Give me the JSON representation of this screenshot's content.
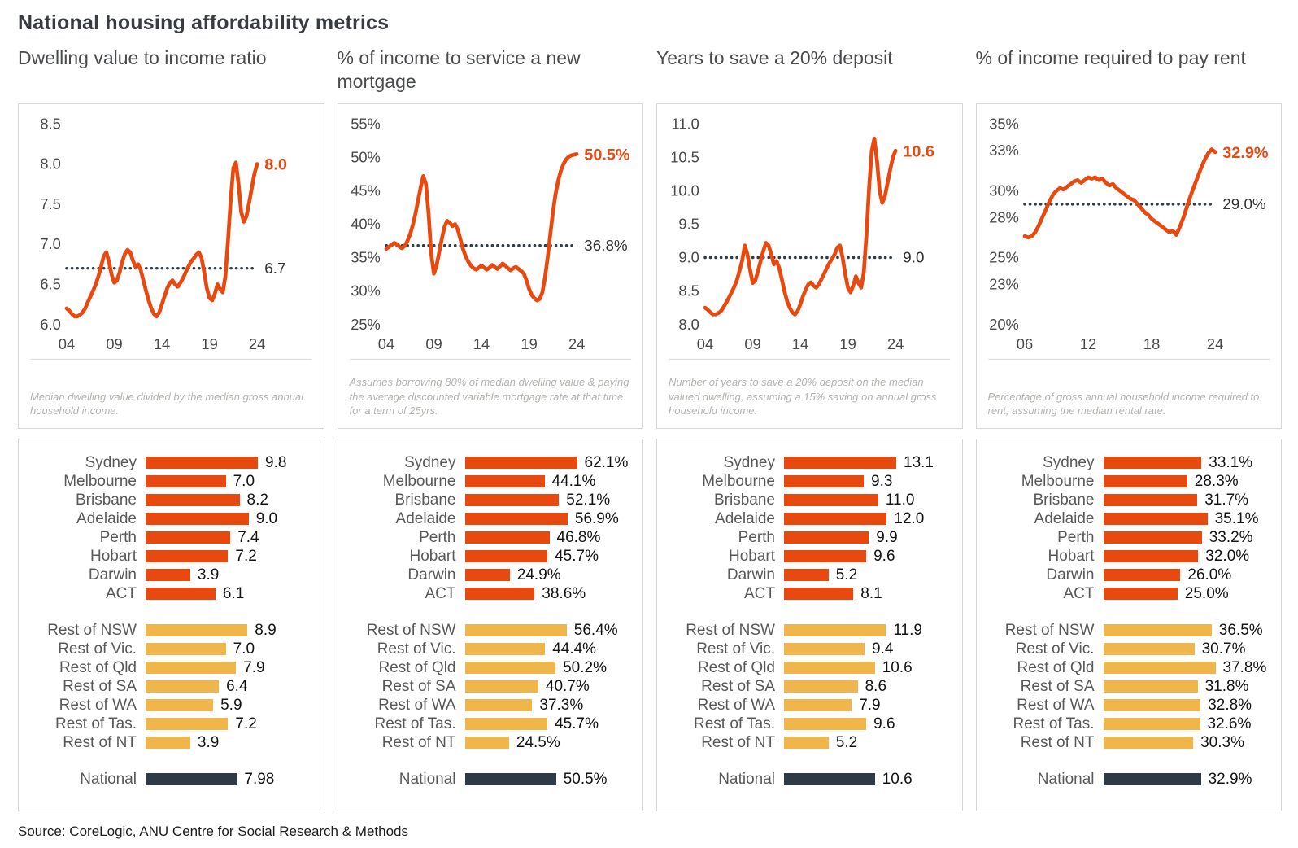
{
  "title": "National housing affordability metrics",
  "source": "Source:  CoreLogic, ANU Centre for Social Research & Methods",
  "colors": {
    "line": "#e8490f",
    "average_dotted": "#2e3b47",
    "capital_bar": "#e8490f",
    "regional_bar": "#f0b64c",
    "national_bar": "#2e3b47"
  },
  "chart_data": [
    {
      "heading": "Dwelling value to income ratio",
      "line": {
        "type": "line",
        "title": "Dwelling value to income ratio",
        "x_start": 2004,
        "x_end": 2024,
        "xticks": [
          2004,
          2009,
          2014,
          2019,
          2024
        ],
        "xtick_labels": [
          "04",
          "09",
          "14",
          "19",
          "24"
        ],
        "ylim": [
          6.0,
          8.5
        ],
        "yticks": [
          6.0,
          6.5,
          7.0,
          7.5,
          8.0,
          8.5
        ],
        "ytick_labels": [
          "6.0",
          "6.5",
          "7.0",
          "7.5",
          "8.0",
          "8.5"
        ],
        "values": [
          6.2,
          6.17,
          6.13,
          6.1,
          6.1,
          6.12,
          6.15,
          6.2,
          6.28,
          6.35,
          6.42,
          6.5,
          6.6,
          6.72,
          6.85,
          6.9,
          6.78,
          6.62,
          6.52,
          6.55,
          6.65,
          6.78,
          6.88,
          6.93,
          6.9,
          6.8,
          6.72,
          6.75,
          6.68,
          6.55,
          6.42,
          6.3,
          6.2,
          6.13,
          6.1,
          6.15,
          6.25,
          6.35,
          6.45,
          6.52,
          6.55,
          6.5,
          6.47,
          6.52,
          6.58,
          6.65,
          6.72,
          6.78,
          6.82,
          6.87,
          6.9,
          6.83,
          6.65,
          6.45,
          6.33,
          6.3,
          6.38,
          6.5,
          6.44,
          6.4,
          6.6,
          7.05,
          7.55,
          7.95,
          8.02,
          7.75,
          7.4,
          7.28,
          7.35,
          7.52,
          7.7,
          7.88,
          8.0
        ],
        "end_label": "8.0",
        "average": 6.7,
        "average_label": "6.7",
        "footnote": "Median dwelling value divided by the median gross annual household income."
      },
      "bars": {
        "type": "bar",
        "scale_max": 9.8,
        "capitals": [
          {
            "label": "Sydney",
            "value": 9.8,
            "text": "9.8"
          },
          {
            "label": "Melbourne",
            "value": 7.0,
            "text": "7.0"
          },
          {
            "label": "Brisbane",
            "value": 8.2,
            "text": "8.2"
          },
          {
            "label": "Adelaide",
            "value": 9.0,
            "text": "9.0"
          },
          {
            "label": "Perth",
            "value": 7.4,
            "text": "7.4"
          },
          {
            "label": "Hobart",
            "value": 7.2,
            "text": "7.2"
          },
          {
            "label": "Darwin",
            "value": 3.9,
            "text": "3.9"
          },
          {
            "label": "ACT",
            "value": 6.1,
            "text": "6.1"
          }
        ],
        "regional": [
          {
            "label": "Rest of NSW",
            "value": 8.9,
            "text": "8.9"
          },
          {
            "label": "Rest of Vic.",
            "value": 7.0,
            "text": "7.0"
          },
          {
            "label": "Rest of Qld",
            "value": 7.9,
            "text": "7.9"
          },
          {
            "label": "Rest of SA",
            "value": 6.4,
            "text": "6.4"
          },
          {
            "label": "Rest of WA",
            "value": 5.9,
            "text": "5.9"
          },
          {
            "label": "Rest of Tas.",
            "value": 7.2,
            "text": "7.2"
          },
          {
            "label": "Rest of NT",
            "value": 3.9,
            "text": "3.9"
          }
        ],
        "national": {
          "label": "National",
          "value": 7.98,
          "text": "7.98"
        }
      }
    },
    {
      "heading": "% of income to service a new mortgage",
      "line": {
        "type": "line",
        "title": "% of income to service a new mortgage",
        "x_start": 2004,
        "x_end": 2024,
        "xticks": [
          2004,
          2009,
          2014,
          2019,
          2024
        ],
        "xtick_labels": [
          "04",
          "09",
          "14",
          "19",
          "24"
        ],
        "ylim": [
          25,
          55
        ],
        "yticks": [
          25,
          30,
          35,
          40,
          45,
          50,
          55
        ],
        "ytick_labels": [
          "25%",
          "30%",
          "35%",
          "40%",
          "45%",
          "50%",
          "55%"
        ],
        "values": [
          36.3,
          36.6,
          36.9,
          37.2,
          37.0,
          36.6,
          36.4,
          36.8,
          37.5,
          38.5,
          39.8,
          41.5,
          43.5,
          45.5,
          47.2,
          46.0,
          41.5,
          35.5,
          32.6,
          33.8,
          35.8,
          37.8,
          39.6,
          40.5,
          40.2,
          39.7,
          40.0,
          39.2,
          37.8,
          36.3,
          35.2,
          34.4,
          33.8,
          33.4,
          33.2,
          33.5,
          33.8,
          33.5,
          33.2,
          33.5,
          33.9,
          33.6,
          33.3,
          33.7,
          34.1,
          33.8,
          33.4,
          33.1,
          33.4,
          33.6,
          33.3,
          33.0,
          32.6,
          31.6,
          30.3,
          29.4,
          28.9,
          28.6,
          28.8,
          29.8,
          32.0,
          35.0,
          38.5,
          41.8,
          44.5,
          46.5,
          48.0,
          49.0,
          49.7,
          50.1,
          50.3,
          50.4,
          50.5
        ],
        "end_label": "50.5%",
        "average": 36.8,
        "average_label": "36.8%",
        "footnote": "Assumes borrowing 80% of median dwelling value & paying the average discounted variable mortgage rate at that time for a term of 25yrs."
      },
      "bars": {
        "type": "bar",
        "scale_max": 62.1,
        "capitals": [
          {
            "label": "Sydney",
            "value": 62.1,
            "text": "62.1%"
          },
          {
            "label": "Melbourne",
            "value": 44.1,
            "text": "44.1%"
          },
          {
            "label": "Brisbane",
            "value": 52.1,
            "text": "52.1%"
          },
          {
            "label": "Adelaide",
            "value": 56.9,
            "text": "56.9%"
          },
          {
            "label": "Perth",
            "value": 46.8,
            "text": "46.8%"
          },
          {
            "label": "Hobart",
            "value": 45.7,
            "text": "45.7%"
          },
          {
            "label": "Darwin",
            "value": 24.9,
            "text": "24.9%"
          },
          {
            "label": "ACT",
            "value": 38.6,
            "text": "38.6%"
          }
        ],
        "regional": [
          {
            "label": "Rest of NSW",
            "value": 56.4,
            "text": "56.4%"
          },
          {
            "label": "Rest of Vic.",
            "value": 44.4,
            "text": "44.4%"
          },
          {
            "label": "Rest of Qld",
            "value": 50.2,
            "text": "50.2%"
          },
          {
            "label": "Rest of SA",
            "value": 40.7,
            "text": "40.7%"
          },
          {
            "label": "Rest of WA",
            "value": 37.3,
            "text": "37.3%"
          },
          {
            "label": "Rest of Tas.",
            "value": 45.7,
            "text": "45.7%"
          },
          {
            "label": "Rest of NT",
            "value": 24.5,
            "text": "24.5%"
          }
        ],
        "national": {
          "label": "National",
          "value": 50.5,
          "text": "50.5%"
        }
      }
    },
    {
      "heading": "Years to save a 20% deposit",
      "line": {
        "type": "line",
        "title": "Years to save a 20% deposit",
        "x_start": 2004,
        "x_end": 2024,
        "xticks": [
          2004,
          2009,
          2014,
          2019,
          2024
        ],
        "xtick_labels": [
          "04",
          "09",
          "14",
          "19",
          "24"
        ],
        "ylim": [
          8.0,
          11.0
        ],
        "yticks": [
          8.0,
          8.5,
          9.0,
          9.5,
          10.0,
          10.5,
          11.0
        ],
        "ytick_labels": [
          "8.0",
          "8.5",
          "9.0",
          "9.5",
          "10.0",
          "10.5",
          "11.0"
        ],
        "values": [
          8.25,
          8.22,
          8.18,
          8.15,
          8.15,
          8.17,
          8.2,
          8.26,
          8.33,
          8.4,
          8.48,
          8.56,
          8.66,
          8.8,
          8.95,
          9.18,
          9.05,
          8.82,
          8.62,
          8.66,
          8.8,
          8.95,
          9.1,
          9.22,
          9.18,
          9.05,
          8.9,
          8.95,
          8.85,
          8.68,
          8.5,
          8.35,
          8.25,
          8.18,
          8.15,
          8.2,
          8.3,
          8.42,
          8.52,
          8.6,
          8.63,
          8.58,
          8.55,
          8.6,
          8.68,
          8.76,
          8.84,
          8.92,
          8.98,
          9.05,
          9.15,
          9.18,
          9.0,
          8.75,
          8.55,
          8.48,
          8.58,
          8.72,
          8.62,
          8.55,
          8.78,
          9.35,
          10.05,
          10.6,
          10.78,
          10.45,
          10.0,
          9.82,
          9.92,
          10.12,
          10.32,
          10.5,
          10.6
        ],
        "end_label": "10.6",
        "average": 9.0,
        "average_label": "9.0",
        "footnote": "Number of years to save a 20% deposit on the median valued dwelling, assuming a 15% saving on annual gross household income."
      },
      "bars": {
        "type": "bar",
        "scale_max": 13.1,
        "capitals": [
          {
            "label": "Sydney",
            "value": 13.1,
            "text": "13.1"
          },
          {
            "label": "Melbourne",
            "value": 9.3,
            "text": "9.3"
          },
          {
            "label": "Brisbane",
            "value": 11.0,
            "text": "11.0"
          },
          {
            "label": "Adelaide",
            "value": 12.0,
            "text": "12.0"
          },
          {
            "label": "Perth",
            "value": 9.9,
            "text": "9.9"
          },
          {
            "label": "Hobart",
            "value": 9.6,
            "text": "9.6"
          },
          {
            "label": "Darwin",
            "value": 5.2,
            "text": "5.2"
          },
          {
            "label": "ACT",
            "value": 8.1,
            "text": "8.1"
          }
        ],
        "regional": [
          {
            "label": "Rest of NSW",
            "value": 11.9,
            "text": "11.9"
          },
          {
            "label": "Rest of Vic.",
            "value": 9.4,
            "text": "9.4"
          },
          {
            "label": "Rest of Qld",
            "value": 10.6,
            "text": "10.6"
          },
          {
            "label": "Rest of SA",
            "value": 8.6,
            "text": "8.6"
          },
          {
            "label": "Rest of WA",
            "value": 7.9,
            "text": "7.9"
          },
          {
            "label": "Rest of Tas.",
            "value": 9.6,
            "text": "9.6"
          },
          {
            "label": "Rest of NT",
            "value": 5.2,
            "text": "5.2"
          }
        ],
        "national": {
          "label": "National",
          "value": 10.6,
          "text": "10.6"
        }
      }
    },
    {
      "heading": "% of income required to pay rent",
      "line": {
        "type": "line",
        "title": "% of income required to pay rent",
        "x_start": 2006,
        "x_end": 2024,
        "xticks": [
          2006,
          2012,
          2018,
          2024
        ],
        "xtick_labels": [
          "06",
          "12",
          "18",
          "24"
        ],
        "ylim": [
          20,
          35
        ],
        "yticks": [
          20,
          23,
          25,
          28,
          30,
          33,
          35
        ],
        "ytick_labels": [
          "20%",
          "23%",
          "25%",
          "28%",
          "30%",
          "33%",
          "35%"
        ],
        "values": [
          26.6,
          26.5,
          26.6,
          26.9,
          27.4,
          28.0,
          28.6,
          29.2,
          29.7,
          30.0,
          30.2,
          30.1,
          30.3,
          30.5,
          30.7,
          30.8,
          30.6,
          30.8,
          31.0,
          30.9,
          31.0,
          30.8,
          30.9,
          30.6,
          30.4,
          30.5,
          30.2,
          30.0,
          29.8,
          29.6,
          29.4,
          29.3,
          29.0,
          28.7,
          28.4,
          28.2,
          27.9,
          27.7,
          27.5,
          27.3,
          27.1,
          26.9,
          27.0,
          26.7,
          27.3,
          28.0,
          28.8,
          29.6,
          30.3,
          31.0,
          31.7,
          32.3,
          32.8,
          33.1,
          32.9
        ],
        "end_label": "32.9%",
        "average": 29.0,
        "average_label": "29.0%",
        "footnote": "Percentage of gross annual household income required to rent, assuming the median rental rate."
      },
      "bars": {
        "type": "bar",
        "scale_max": 37.8,
        "capitals": [
          {
            "label": "Sydney",
            "value": 33.1,
            "text": "33.1%"
          },
          {
            "label": "Melbourne",
            "value": 28.3,
            "text": "28.3%"
          },
          {
            "label": "Brisbane",
            "value": 31.7,
            "text": "31.7%"
          },
          {
            "label": "Adelaide",
            "value": 35.1,
            "text": "35.1%"
          },
          {
            "label": "Perth",
            "value": 33.2,
            "text": "33.2%"
          },
          {
            "label": "Hobart",
            "value": 32.0,
            "text": "32.0%"
          },
          {
            "label": "Darwin",
            "value": 26.0,
            "text": "26.0%"
          },
          {
            "label": "ACT",
            "value": 25.0,
            "text": "25.0%"
          }
        ],
        "regional": [
          {
            "label": "Rest of NSW",
            "value": 36.5,
            "text": "36.5%"
          },
          {
            "label": "Rest of Vic.",
            "value": 30.7,
            "text": "30.7%"
          },
          {
            "label": "Rest of Qld",
            "value": 37.8,
            "text": "37.8%"
          },
          {
            "label": "Rest of SA",
            "value": 31.8,
            "text": "31.8%"
          },
          {
            "label": "Rest of WA",
            "value": 32.8,
            "text": "32.8%"
          },
          {
            "label": "Rest of Tas.",
            "value": 32.6,
            "text": "32.6%"
          },
          {
            "label": "Rest of NT",
            "value": 30.3,
            "text": "30.3%"
          }
        ],
        "national": {
          "label": "National",
          "value": 32.9,
          "text": "32.9%"
        }
      }
    }
  ]
}
